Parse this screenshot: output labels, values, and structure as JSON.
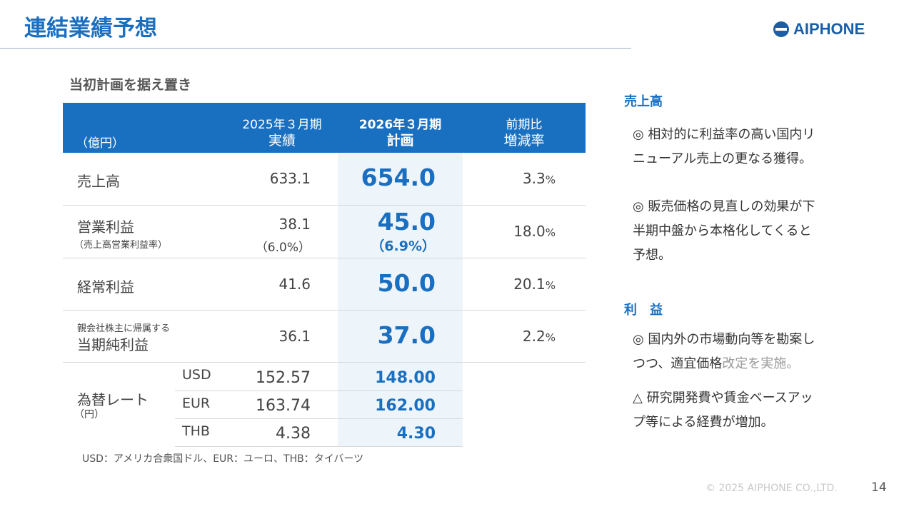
{
  "title": "連結業績予想",
  "logo": "AIPHONE",
  "subtitle": "当初計画を据え置き",
  "table": {
    "unit": "（億円）",
    "col1": {
      "line1": "2025年３月期",
      "line2": "実績"
    },
    "col2": {
      "line1": "2026年３月期",
      "line2": "計画"
    },
    "col3": {
      "line1": "前期比",
      "line2": "増減率"
    },
    "rows": [
      {
        "label": "売上高",
        "v25": "633.1",
        "plan": "654.0",
        "ratio": "3.3",
        "pct": "%"
      },
      {
        "label": "営業利益",
        "sublabel": "（売上高営業利益率）",
        "v25": "38.1",
        "v25sub": "（6.0%）",
        "plan": "45.0",
        "plansub": "（6.9%）",
        "ratio": "18.0",
        "pct": "%"
      },
      {
        "label": "経常利益",
        "v25": "41.6",
        "plan": "50.0",
        "ratio": "20.1",
        "pct": "%"
      },
      {
        "prelabel": "親会社株主に帰属する",
        "label": "当期純利益",
        "v25": "36.1",
        "plan": "37.0",
        "ratio": "2.2",
        "pct": "%"
      }
    ],
    "fx": {
      "label": "為替レート",
      "unit": "（円）",
      "rows": [
        {
          "cur": "USD",
          "v25": "152.57",
          "plan": "148.00"
        },
        {
          "cur": "EUR",
          "v25": "163.74",
          "plan": "162.00"
        },
        {
          "cur": "THB",
          "v25": "4.38",
          "plan": "4.30"
        }
      ]
    }
  },
  "note": "USD：アメリカ合衆国ドル、EUR：ユーロ、THB：タイバーツ",
  "side": {
    "h1": "売上高",
    "p1a": "◎ 相対的に利益率の高い国内リ",
    "p1b": "ニューアル売上の更なる獲得。",
    "p2a": "◎ 販売価格の見直しの効果が下",
    "p2b": "半期中盤から本格化してくると",
    "p2c": "予想。",
    "h2": "利　益",
    "p3a": "◎ 国内外の市場動向等を勘案し",
    "p3b": "つつ、適宜価格",
    "p3c": "改定を実施。",
    "p4a": "△ 研究開発費や賃金ベースアッ",
    "p4b": "プ等による経費が増加。"
  },
  "footer": "© 2025 AIPHONE CO.,LTD.",
  "page": "14"
}
